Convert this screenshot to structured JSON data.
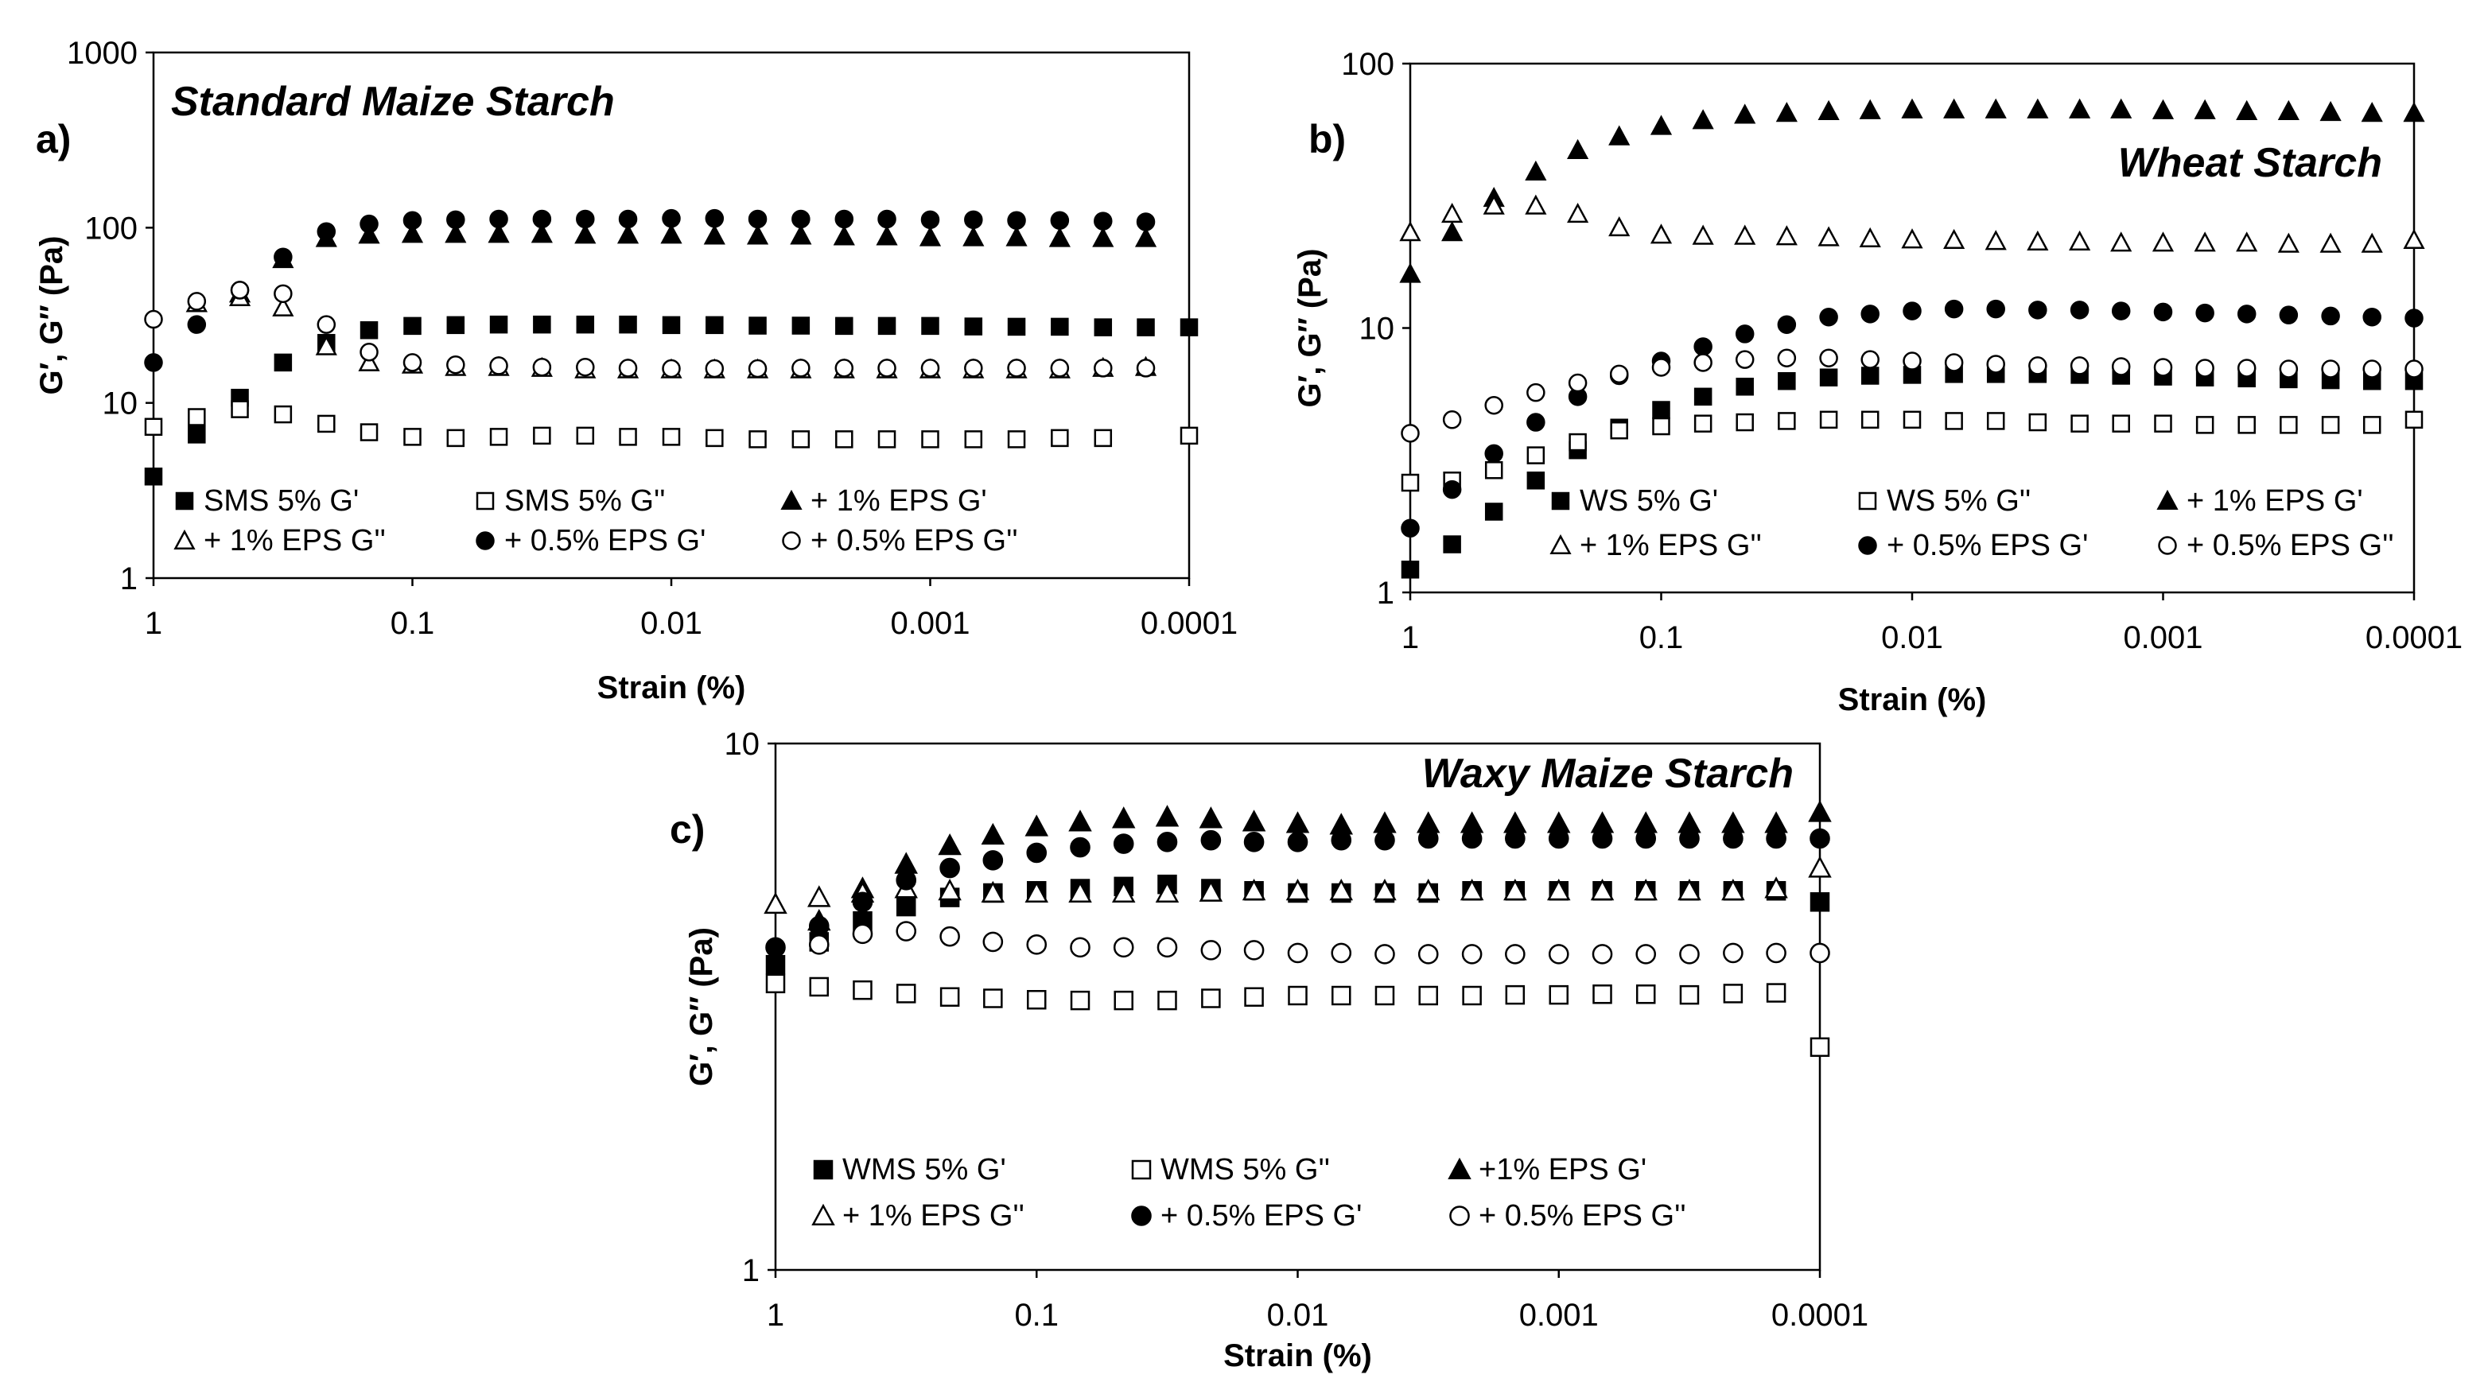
{
  "chart_data": [
    {
      "type": "scatter",
      "panel_label": "a)",
      "title": "Standard Maize Starch",
      "xlabel": "Strain (%)",
      "ylabel": "G′, G″ (Pa)",
      "x_scale": "log",
      "x_reversed": true,
      "xlim": [
        1,
        0.0001
      ],
      "y_scale": "log",
      "ylim": [
        1,
        1000
      ],
      "x_ticks": [
        "1",
        "0.1",
        "0.01",
        "0.001",
        "0.0001"
      ],
      "y_ticks": [
        "1",
        "10",
        "100",
        "1000"
      ],
      "x": [
        1,
        0.681,
        0.464,
        0.316,
        0.215,
        0.147,
        0.1,
        0.0681,
        0.0464,
        0.0316,
        0.0215,
        0.0147,
        0.01,
        0.00681,
        0.00464,
        0.00316,
        0.00215,
        0.00147,
        0.001,
        0.000681,
        0.000464,
        0.000316,
        0.000215,
        0.000147,
        0.0001
      ],
      "series": [
        {
          "name": "SMS 5% G'",
          "marker": "square-filled",
          "values": [
            3.8,
            6.6,
            10.7,
            17,
            22,
            26,
            27.5,
            27.8,
            28,
            28,
            28,
            28,
            27.8,
            27.8,
            27.6,
            27.6,
            27.5,
            27.5,
            27.5,
            27.3,
            27.2,
            27.2,
            27,
            27,
            27
          ]
        },
        {
          "name": "SMS 5% G''",
          "marker": "square-open",
          "values": [
            7.3,
            8.3,
            9.2,
            8.6,
            7.6,
            6.8,
            6.4,
            6.3,
            6.4,
            6.5,
            6.5,
            6.4,
            6.4,
            6.3,
            6.2,
            6.2,
            6.2,
            6.2,
            6.2,
            6.2,
            6.2,
            6.3,
            6.3,
            null,
            6.5
          ]
        },
        {
          "name": "+ 1% EPS G'",
          "marker": "triangle-filled",
          "values": [
            null,
            37,
            42,
            66,
            87,
            91,
            92,
            92,
            92,
            92,
            91,
            91,
            91,
            90,
            90,
            90,
            89,
            89,
            88,
            88,
            88,
            87,
            87,
            87,
            null
          ]
        },
        {
          "name": "+ 1% EPS G''",
          "marker": "triangle-open",
          "values": [
            null,
            37,
            40,
            35,
            21,
            17,
            16.5,
            16,
            16,
            15.8,
            15.5,
            15.5,
            15.5,
            15.5,
            15.5,
            15.5,
            15.5,
            15.5,
            15.5,
            15.5,
            15.5,
            15.5,
            15.8,
            16,
            null
          ]
        },
        {
          "name": "+ 0.5% EPS G'",
          "marker": "circle-filled",
          "values": [
            17,
            28,
            44,
            68,
            95,
            105,
            110,
            111,
            112,
            112,
            112,
            112,
            113,
            113,
            112,
            112,
            112,
            112,
            111,
            111,
            110,
            110,
            109,
            108,
            null
          ]
        },
        {
          "name": "+ 0.5% EPS G''",
          "marker": "circle-open",
          "values": [
            30,
            38,
            44,
            42,
            28,
            19.5,
            17,
            16.5,
            16.3,
            16,
            16,
            15.8,
            15.7,
            15.7,
            15.7,
            15.8,
            15.8,
            15.8,
            15.8,
            15.8,
            15.8,
            15.8,
            15.8,
            15.8,
            null
          ]
        }
      ]
    },
    {
      "type": "scatter",
      "panel_label": "b)",
      "title": "Wheat Starch",
      "xlabel": "Strain (%)",
      "ylabel": "G′, G″ (Pa)",
      "x_scale": "log",
      "x_reversed": true,
      "xlim": [
        1,
        0.0001
      ],
      "y_scale": "log",
      "ylim": [
        1,
        100
      ],
      "x_ticks": [
        "1",
        "0.1",
        "0.01",
        "0.001",
        "0.0001"
      ],
      "y_ticks": [
        "1",
        "10",
        "100"
      ],
      "x": [
        1,
        0.681,
        0.464,
        0.316,
        0.215,
        0.147,
        0.1,
        0.0681,
        0.0464,
        0.0316,
        0.0215,
        0.0147,
        0.01,
        0.00681,
        0.00464,
        0.00316,
        0.00215,
        0.00147,
        0.001,
        0.000681,
        0.000464,
        0.000316,
        0.000215,
        0.000147,
        0.0001
      ],
      "series": [
        {
          "name": "WS 5% G'",
          "marker": "square-filled",
          "values": [
            1.22,
            1.52,
            2.02,
            2.65,
            3.45,
            4.2,
            4.9,
            5.5,
            6.0,
            6.3,
            6.5,
            6.6,
            6.65,
            6.7,
            6.7,
            6.7,
            6.65,
            6.6,
            6.55,
            6.5,
            6.45,
            6.4,
            6.35,
            6.3,
            6.3
          ]
        },
        {
          "name": "WS 5% G''",
          "marker": "square-open",
          "values": [
            2.6,
            2.65,
            2.9,
            3.3,
            3.7,
            4.1,
            4.25,
            4.35,
            4.4,
            4.45,
            4.5,
            4.5,
            4.5,
            4.45,
            4.45,
            4.4,
            4.35,
            4.35,
            4.35,
            4.3,
            4.3,
            4.3,
            4.3,
            4.3,
            4.5
          ]
        },
        {
          "name": "+ 1% EPS G'",
          "marker": "triangle-filled",
          "values": [
            16,
            23,
            31,
            39,
            47,
            53,
            58,
            61,
            64,
            65,
            66,
            66.5,
            67,
            67,
            67,
            67,
            67,
            67,
            66.5,
            66.5,
            66,
            66,
            65.5,
            65,
            65
          ]
        },
        {
          "name": "+ 1% EPS G''",
          "marker": "triangle-open",
          "values": [
            23,
            27,
            29,
            29,
            27,
            24,
            22.5,
            22.3,
            22.3,
            22.2,
            22,
            21.8,
            21.6,
            21.5,
            21.3,
            21.2,
            21.2,
            21,
            21,
            21,
            21,
            20.8,
            20.8,
            20.8,
            21.5
          ]
        },
        {
          "name": "+ 0.5% EPS G'",
          "marker": "circle-filled",
          "values": [
            1.75,
            2.45,
            3.35,
            4.4,
            5.5,
            6.6,
            7.5,
            8.5,
            9.5,
            10.3,
            11,
            11.3,
            11.6,
            11.8,
            11.8,
            11.7,
            11.7,
            11.6,
            11.5,
            11.4,
            11.3,
            11.2,
            11.1,
            11.0,
            10.9
          ]
        },
        {
          "name": "+ 0.5% EPS G''",
          "marker": "circle-open",
          "values": [
            4.0,
            4.5,
            5.1,
            5.7,
            6.2,
            6.7,
            7.1,
            7.4,
            7.6,
            7.7,
            7.7,
            7.6,
            7.5,
            7.4,
            7.3,
            7.2,
            7.2,
            7.15,
            7.1,
            7.05,
            7.05,
            7.0,
            7.0,
            7.0,
            7.0
          ]
        }
      ]
    },
    {
      "type": "scatter",
      "panel_label": "c)",
      "title": "Waxy Maize Starch",
      "xlabel": "Strain (%)",
      "ylabel": "G′, G″ (Pa)",
      "x_scale": "log",
      "x_reversed": true,
      "xlim": [
        1,
        0.0001
      ],
      "y_scale": "log",
      "ylim": [
        1,
        10
      ],
      "x_ticks": [
        "1",
        "0.1",
        "0.01",
        "0.001",
        "0.0001"
      ],
      "y_ticks": [
        "1",
        "10"
      ],
      "x": [
        1,
        0.681,
        0.464,
        0.316,
        0.215,
        0.147,
        0.1,
        0.0681,
        0.0464,
        0.0316,
        0.0215,
        0.0147,
        0.01,
        0.00681,
        0.00464,
        0.00316,
        0.00215,
        0.00147,
        0.001,
        0.000681,
        0.000464,
        0.000316,
        0.000215,
        0.000147,
        0.0001
      ],
      "series": [
        {
          "name": "WMS 5% G'",
          "marker": "square-filled",
          "values": [
            3.8,
            4.2,
            4.6,
            4.9,
            5.1,
            5.2,
            5.25,
            5.3,
            5.35,
            5.4,
            5.3,
            5.25,
            5.2,
            5.2,
            5.2,
            5.2,
            5.25,
            5.25,
            5.25,
            5.25,
            5.25,
            5.25,
            5.25,
            5.25,
            5.0
          ]
        },
        {
          "name": "WMS 5% G''",
          "marker": "square-open",
          "values": [
            3.5,
            3.45,
            3.4,
            3.35,
            3.3,
            3.28,
            3.26,
            3.25,
            3.25,
            3.25,
            3.28,
            3.3,
            3.32,
            3.32,
            3.32,
            3.32,
            3.32,
            3.33,
            3.33,
            3.34,
            3.34,
            3.33,
            3.35,
            3.36,
            2.65
          ]
        },
        {
          "name": "+1% EPS G'",
          "marker": "triangle-filled",
          "values": [
            null,
            4.6,
            5.3,
            5.9,
            6.4,
            6.7,
            6.95,
            7.1,
            7.2,
            7.25,
            7.2,
            7.1,
            7.05,
            7.0,
            7.05,
            7.05,
            7.05,
            7.05,
            7.05,
            7.05,
            7.05,
            7.05,
            7.05,
            7.05,
            7.4
          ]
        },
        {
          "name": "+ 1% EPS G''",
          "marker": "triangle-open",
          "values": [
            4.95,
            5.1,
            5.2,
            5.3,
            5.25,
            5.2,
            5.2,
            5.2,
            5.2,
            5.2,
            5.22,
            5.25,
            5.25,
            5.25,
            5.25,
            5.25,
            5.25,
            5.25,
            5.25,
            5.25,
            5.25,
            5.25,
            5.25,
            5.3,
            5.8
          ]
        },
        {
          "name": "+ 0.5% EPS G'",
          "marker": "circle-filled",
          "values": [
            4.1,
            4.5,
            5.0,
            5.5,
            5.8,
            6.0,
            6.2,
            6.35,
            6.45,
            6.5,
            6.55,
            6.5,
            6.5,
            6.55,
            6.55,
            6.6,
            6.6,
            6.6,
            6.6,
            6.6,
            6.6,
            6.6,
            6.6,
            6.6,
            6.6
          ]
        },
        {
          "name": "+ 0.5% EPS G''",
          "marker": "circle-open",
          "values": [
            null,
            4.15,
            4.35,
            4.4,
            4.3,
            4.2,
            4.15,
            4.1,
            4.1,
            4.1,
            4.05,
            4.05,
            4.0,
            4.0,
            3.98,
            3.98,
            3.98,
            3.98,
            3.98,
            3.98,
            3.98,
            3.98,
            4.0,
            4.0,
            4.0
          ]
        }
      ]
    }
  ]
}
